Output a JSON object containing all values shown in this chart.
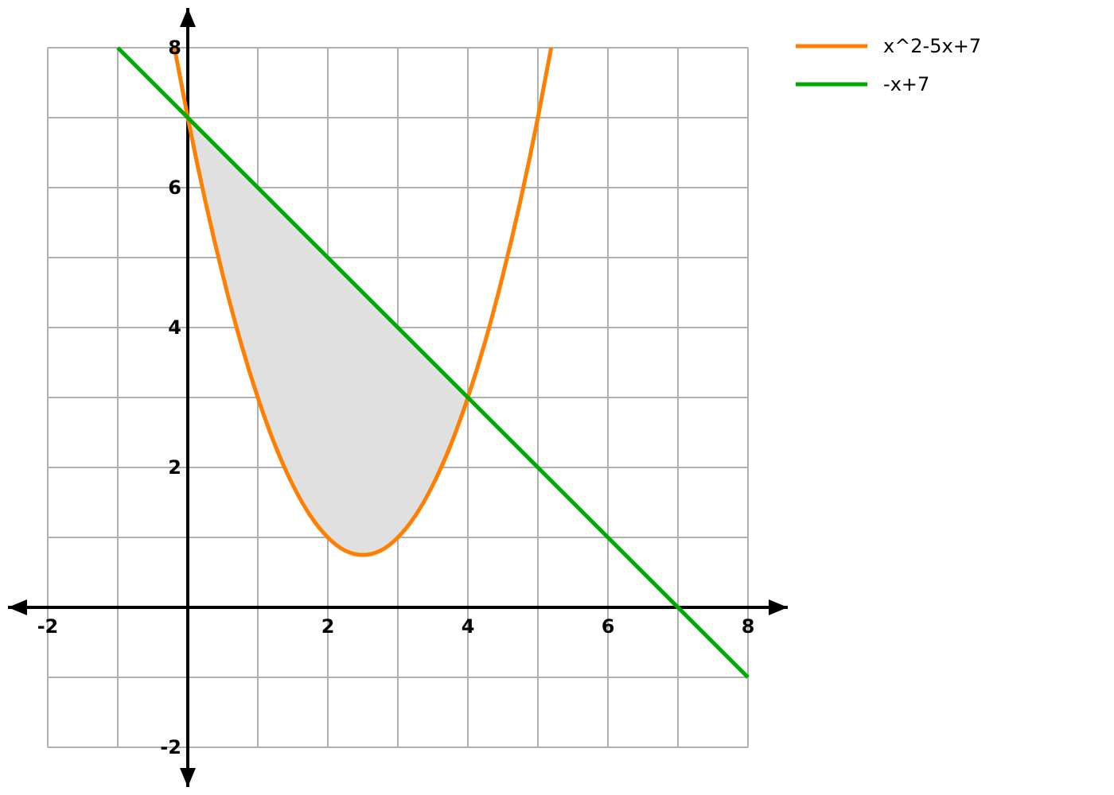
{
  "chart_data": {
    "type": "line",
    "grid": true,
    "legend": "top right",
    "marker": "none",
    "line_style": "solid",
    "xlim": [
      -2,
      8
    ],
    "ylim": [
      -2,
      8
    ],
    "xticks": [
      -2,
      {
        "value": -1,
        "label": null
      },
      {
        "value": 0,
        "label": null
      },
      {
        "value": 1,
        "label": null
      },
      2,
      {
        "value": 3,
        "label": null
      },
      4,
      {
        "value": 5,
        "label": null
      },
      6,
      {
        "value": 7,
        "label": null
      },
      8
    ],
    "yticks": [
      -2,
      {
        "value": -1,
        "label": null
      },
      {
        "value": 0,
        "label": null
      },
      {
        "value": 1,
        "label": null
      },
      2,
      {
        "value": 3,
        "label": null
      },
      4,
      {
        "value": 5,
        "label": null
      },
      6,
      {
        "value": 7,
        "label": null
      },
      8
    ],
    "series": [
      {
        "name": "x^2-5x+7",
        "color": "#ff8000",
        "x": [
          -0.19,
          0,
          0.25,
          0.5,
          0.75,
          1,
          1.25,
          1.5,
          1.75,
          2,
          2.25,
          2.5,
          2.75,
          3,
          3.25,
          3.5,
          3.75,
          4,
          4.25,
          4.5,
          4.75,
          5,
          5.19
        ],
        "values": [
          8,
          7,
          5.81,
          4.75,
          3.81,
          3,
          2.31,
          1.75,
          1.31,
          1,
          0.81,
          0.75,
          0.81,
          1,
          1.31,
          1.75,
          2.31,
          3,
          3.81,
          4.75,
          5.81,
          7,
          8
        ]
      },
      {
        "name": "-x+7",
        "color": "#00aa00",
        "x": [
          -1,
          0,
          0.25,
          0.5,
          0.75,
          1,
          1.25,
          1.5,
          1.75,
          2,
          2.25,
          2.5,
          2.75,
          3,
          3.25,
          3.5,
          3.75,
          4,
          8
        ],
        "values": [
          8,
          7,
          6.75,
          6.5,
          6.25,
          6,
          5.75,
          5.5,
          5.25,
          5,
          4.75,
          4.5,
          4.25,
          4,
          3.75,
          3.5,
          3.25,
          3,
          -1
        ],
        "upper": [
          null,
          7,
          6.75,
          6.5,
          6.25,
          6,
          5.75,
          5.5,
          5.25,
          5,
          4.75,
          4.5,
          4.25,
          4,
          3.75,
          3.5,
          3.25,
          3,
          null
        ],
        "lower": [
          null,
          7,
          5.81,
          4.75,
          3.81,
          3,
          2.31,
          1.75,
          1.31,
          1,
          0.81,
          0.75,
          0.81,
          1,
          1.31,
          1.75,
          2.31,
          3,
          null
        ]
      }
    ]
  }
}
